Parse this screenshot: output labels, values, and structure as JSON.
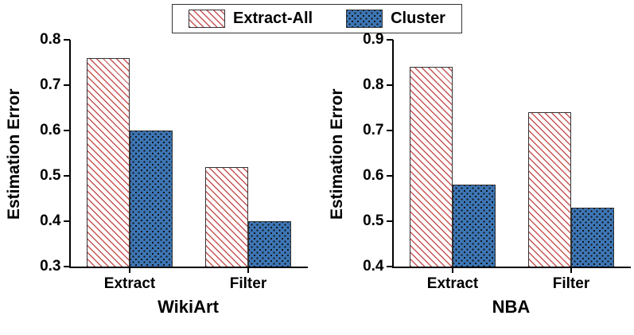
{
  "colors": {
    "hatch_red": "#c65353",
    "bar_blue": "#3d76b5",
    "dot_color": "#111111",
    "edge": "#333333",
    "axis": "#000000"
  },
  "legend": {
    "position": "top-center",
    "items": [
      {
        "label": "Extract-All",
        "pattern": "red-hatch"
      },
      {
        "label": "Cluster",
        "pattern": "blue-dots"
      }
    ]
  },
  "chart_data": [
    {
      "type": "bar",
      "title": "WikiArt",
      "xlabel": "",
      "ylabel": "Estimation Error",
      "categories": [
        "Extract",
        "Filter"
      ],
      "series": [
        {
          "name": "Extract-All",
          "pattern": "red-hatch",
          "values": [
            0.76,
            0.52
          ]
        },
        {
          "name": "Cluster",
          "pattern": "blue-dots",
          "values": [
            0.6,
            0.4
          ]
        }
      ],
      "ylim": [
        0.3,
        0.8
      ],
      "yticks": [
        0.3,
        0.4,
        0.5,
        0.6,
        0.7,
        0.8
      ],
      "grid": false
    },
    {
      "type": "bar",
      "title": "NBA",
      "xlabel": "",
      "ylabel": "Estimation Error",
      "categories": [
        "Extract",
        "Filter"
      ],
      "series": [
        {
          "name": "Extract-All",
          "pattern": "red-hatch",
          "values": [
            0.84,
            0.74
          ]
        },
        {
          "name": "Cluster",
          "pattern": "blue-dots",
          "values": [
            0.58,
            0.53
          ]
        }
      ],
      "ylim": [
        0.4,
        0.9
      ],
      "yticks": [
        0.4,
        0.5,
        0.6,
        0.7,
        0.8,
        0.9
      ],
      "grid": false
    }
  ]
}
